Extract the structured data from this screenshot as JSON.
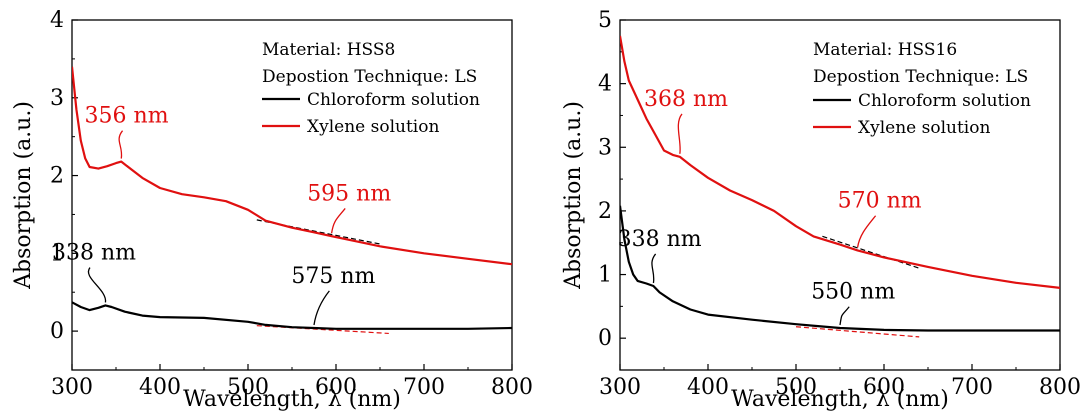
{
  "chart_data": [
    {
      "type": "line",
      "xlabel": "Wavelength, λ (nm)",
      "ylabel": "Absorption (a.u.)",
      "xlim": [
        300,
        800
      ],
      "ylim": [
        -0.5,
        4
      ],
      "xticks": [
        "300",
        "400",
        "500",
        "600",
        "700",
        "800"
      ],
      "yticks": [
        "0",
        "1",
        "2",
        "3",
        "4"
      ],
      "info_lines": [
        "Material: HSS8",
        "Depostion Technique: LS"
      ],
      "legend_placement": "top-right",
      "colors": {
        "chloroform": "#000000",
        "xylene": "#e01010"
      },
      "series": [
        {
          "name": "Chloroform solution",
          "color": "#000000",
          "x": [
            300,
            310,
            320,
            330,
            338,
            345,
            360,
            380,
            400,
            450,
            500,
            520,
            550,
            575,
            600,
            650,
            700,
            750,
            800
          ],
          "y": [
            0.37,
            0.31,
            0.27,
            0.3,
            0.33,
            0.31,
            0.25,
            0.2,
            0.18,
            0.17,
            0.12,
            0.08,
            0.05,
            0.04,
            0.03,
            0.03,
            0.03,
            0.03,
            0.04
          ]
        },
        {
          "name": "Xylene solution",
          "color": "#e01010",
          "x": [
            300,
            305,
            310,
            315,
            320,
            330,
            340,
            350,
            356,
            365,
            380,
            400,
            425,
            450,
            475,
            500,
            520,
            550,
            575,
            595,
            625,
            650,
            700,
            750,
            800
          ],
          "y": [
            3.4,
            2.85,
            2.45,
            2.22,
            2.11,
            2.09,
            2.12,
            2.16,
            2.18,
            2.1,
            1.97,
            1.84,
            1.76,
            1.72,
            1.67,
            1.56,
            1.42,
            1.33,
            1.27,
            1.22,
            1.15,
            1.09,
            1.0,
            0.93,
            0.86
          ]
        }
      ],
      "tangents": [
        {
          "color": "#000000",
          "x": [
            510,
            650
          ],
          "y": [
            1.43,
            1.12
          ]
        },
        {
          "color": "#e01010",
          "x": [
            510,
            660
          ],
          "y": [
            0.07,
            -0.03
          ]
        }
      ],
      "annotations": [
        {
          "text": "356 nm",
          "color": "#e01010",
          "at": [
            356,
            2.18
          ],
          "label": [
            362,
            2.68
          ]
        },
        {
          "text": "595 nm",
          "color": "#e01010",
          "at": [
            595,
            1.22
          ],
          "label": [
            615,
            1.68
          ]
        },
        {
          "text": "338 nm",
          "color": "#000000",
          "at": [
            338,
            0.33
          ],
          "label": [
            325,
            0.92
          ]
        },
        {
          "text": "575 nm",
          "color": "#000000",
          "at": [
            575,
            0.04
          ],
          "label": [
            597,
            0.62
          ]
        }
      ]
    },
    {
      "type": "line",
      "xlabel": "Wavelength, λ (nm)",
      "ylabel": "Absorption (a.u.)",
      "xlim": [
        300,
        800
      ],
      "ylim": [
        -0.5,
        5
      ],
      "xticks": [
        "300",
        "400",
        "500",
        "600",
        "700",
        "800"
      ],
      "yticks": [
        "0",
        "1",
        "2",
        "3",
        "4",
        "5"
      ],
      "info_lines": [
        "Material: HSS16",
        "Depostion Technique: LS"
      ],
      "legend_placement": "top-right",
      "colors": {
        "chloroform": "#000000",
        "xylene": "#e01010"
      },
      "series": [
        {
          "name": "Chloroform solution",
          "color": "#000000",
          "x": [
            300,
            305,
            310,
            315,
            320,
            330,
            338,
            345,
            360,
            380,
            400,
            450,
            500,
            525,
            550,
            600,
            650,
            700,
            750,
            800
          ],
          "y": [
            2.08,
            1.55,
            1.2,
            1.0,
            0.9,
            0.86,
            0.82,
            0.72,
            0.58,
            0.45,
            0.37,
            0.29,
            0.22,
            0.19,
            0.16,
            0.13,
            0.12,
            0.12,
            0.12,
            0.12
          ]
        },
        {
          "name": "Xylene solution",
          "color": "#e01010",
          "x": [
            300,
            305,
            310,
            320,
            330,
            340,
            350,
            360,
            368,
            380,
            400,
            425,
            450,
            475,
            500,
            520,
            550,
            570,
            600,
            650,
            700,
            750,
            800
          ],
          "y": [
            4.75,
            4.35,
            4.05,
            3.75,
            3.45,
            3.2,
            2.95,
            2.88,
            2.85,
            2.72,
            2.52,
            2.32,
            2.17,
            2.0,
            1.76,
            1.6,
            1.47,
            1.38,
            1.27,
            1.12,
            0.98,
            0.87,
            0.79
          ]
        },
        {
          "name": "",
          "color": "#000000",
          "x": [],
          "y": []
        }
      ],
      "tangents": [
        {
          "color": "#000000",
          "x": [
            530,
            640
          ],
          "y": [
            1.6,
            1.1
          ]
        },
        {
          "color": "#e01010",
          "x": [
            500,
            640
          ],
          "y": [
            0.18,
            0.02
          ]
        }
      ],
      "annotations": [
        {
          "text": "368 nm",
          "color": "#e01010",
          "at": [
            368,
            2.85
          ],
          "label": [
            375,
            3.65
          ]
        },
        {
          "text": "570 nm",
          "color": "#e01010",
          "at": [
            570,
            1.38
          ],
          "label": [
            595,
            2.05
          ]
        },
        {
          "text": "338 nm",
          "color": "#000000",
          "at": [
            338,
            0.82
          ],
          "label": [
            345,
            1.45
          ]
        },
        {
          "text": "550 nm",
          "color": "#000000",
          "at": [
            550,
            0.16
          ],
          "label": [
            565,
            0.62
          ]
        }
      ]
    }
  ]
}
